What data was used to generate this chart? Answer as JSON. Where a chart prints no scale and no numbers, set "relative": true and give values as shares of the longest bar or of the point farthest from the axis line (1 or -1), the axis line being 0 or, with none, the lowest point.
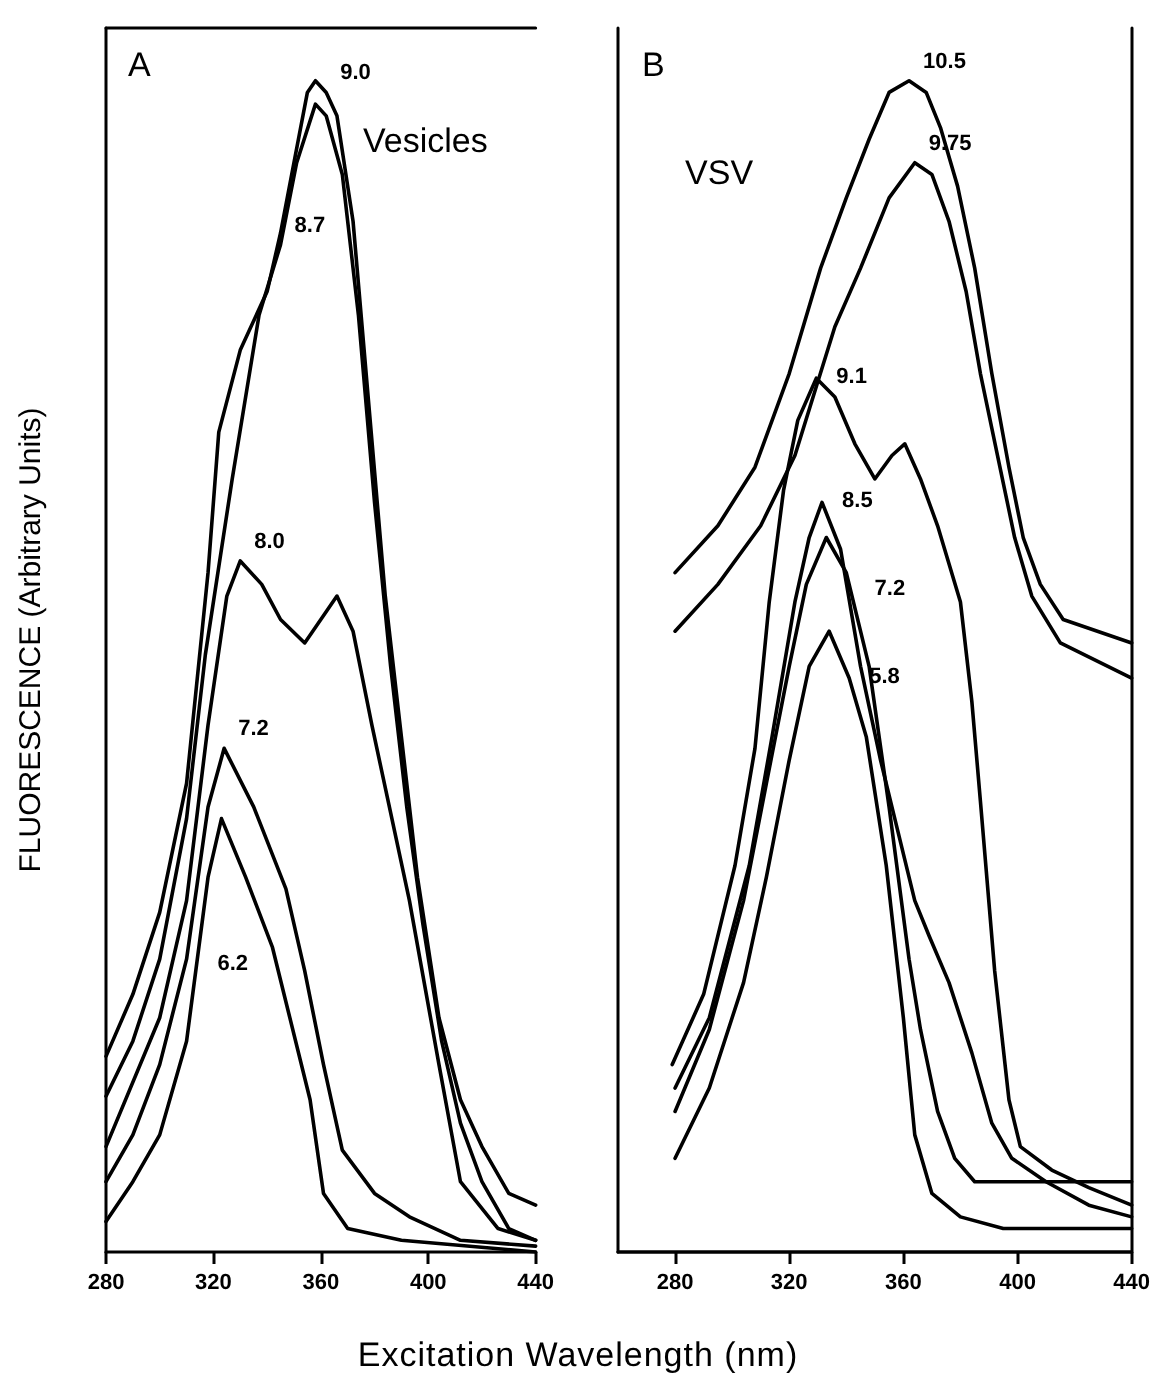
{
  "chart_data": [
    {
      "type": "line",
      "xlabel": "Excitation Wavelength (nm)",
      "ylabel": "FLUORESCENCE (Arbitrary Units)",
      "title": "Vesicles",
      "relative": true,
      "xlim": [
        280,
        440
      ],
      "xticks": [
        280,
        320,
        360,
        400,
        440
      ],
      "tick_labels": "x",
      "grid": false,
      "marker": "none",
      "line_style": "solid",
      "annotations": [
        "A",
        {
          "text": "9.0",
          "x": 362,
          "y": 0.99
        },
        {
          "text": "8.7",
          "x": 345,
          "y": 0.86
        },
        {
          "text": "8.0",
          "x": 330,
          "y": 0.59
        },
        {
          "text": "7.2",
          "x": 324,
          "y": 0.43
        },
        {
          "text": "6.2",
          "x": 342,
          "y": 0.26
        }
      ],
      "series": [
        {
          "color": "#000000",
          "x": [
            280,
            290,
            300,
            310,
            318,
            322,
            330,
            340,
            345,
            350,
            355,
            358,
            362,
            366,
            372,
            378,
            384,
            390,
            396,
            404,
            412,
            420,
            430,
            440
          ],
          "values": [
            0.167,
            0.22,
            0.29,
            0.4,
            0.58,
            0.7,
            0.77,
            0.82,
            0.87,
            0.93,
            0.99,
            1.0,
            0.99,
            0.97,
            0.88,
            0.72,
            0.56,
            0.44,
            0.32,
            0.2,
            0.13,
            0.09,
            0.05,
            0.04
          ]
        },
        {
          "color": "#000000",
          "x": [
            280,
            290,
            300,
            310,
            317,
            327,
            337,
            345,
            351,
            358,
            362,
            368,
            374,
            380,
            386,
            392,
            398,
            405,
            412,
            420,
            430,
            440
          ],
          "values": [
            0.133,
            0.18,
            0.25,
            0.37,
            0.51,
            0.66,
            0.8,
            0.86,
            0.93,
            0.98,
            0.97,
            0.92,
            0.8,
            0.64,
            0.5,
            0.38,
            0.28,
            0.18,
            0.11,
            0.06,
            0.02,
            0.01
          ]
        },
        {
          "color": "#000000",
          "x": [
            280,
            300,
            310,
            318,
            325,
            330,
            338,
            345,
            354,
            360,
            366,
            372,
            379,
            393,
            404,
            412,
            426,
            440
          ],
          "values": [
            0.09,
            0.2,
            0.3,
            0.45,
            0.56,
            0.59,
            0.57,
            0.54,
            0.52,
            0.54,
            0.56,
            0.53,
            0.45,
            0.3,
            0.16,
            0.06,
            0.02,
            0.01
          ]
        },
        {
          "color": "#000000",
          "x": [
            280,
            290,
            300,
            310,
            318,
            324,
            335,
            347,
            354,
            361,
            368,
            380,
            393,
            412,
            440
          ],
          "values": [
            0.06,
            0.1,
            0.16,
            0.25,
            0.38,
            0.43,
            0.38,
            0.31,
            0.24,
            0.16,
            0.087,
            0.05,
            0.03,
            0.01,
            0.005
          ]
        },
        {
          "color": "#000000",
          "x": [
            280,
            290,
            300,
            310,
            318,
            323,
            332,
            342,
            356,
            361,
            370,
            390,
            440
          ],
          "values": [
            0.026,
            0.06,
            0.1,
            0.18,
            0.32,
            0.37,
            0.32,
            0.26,
            0.13,
            0.05,
            0.02,
            0.01,
            0.0
          ]
        }
      ]
    },
    {
      "type": "line",
      "title": "VSV",
      "relative": true,
      "xlim": [
        260,
        440
      ],
      "xticks": [
        280,
        320,
        360,
        400,
        440
      ],
      "tick_labels": "x",
      "grid": false,
      "marker": "none",
      "line_style": "solid",
      "annotations": [
        "B",
        {
          "text": "10.5",
          "x": 362,
          "y": 1.0
        },
        {
          "text": "9.75",
          "x": 364,
          "y": 0.93
        },
        {
          "text": "9.1",
          "x": 329.5,
          "y": 0.746
        },
        {
          "text": "8.5",
          "x": 331.5,
          "y": 0.64
        },
        {
          "text": "7.2",
          "x": 345,
          "y": 0.55
        },
        {
          "text": "5.8",
          "x": 341,
          "y": 0.49
        }
      ],
      "series": [
        {
          "color": "#000000",
          "x": [
            280,
            295,
            308,
            320,
            331,
            340,
            348,
            355,
            362,
            368,
            373,
            379,
            385,
            391,
            397,
            402,
            408,
            416,
            440
          ],
          "values": [
            0.58,
            0.62,
            0.67,
            0.75,
            0.84,
            0.9,
            0.95,
            0.99,
            1.0,
            0.99,
            0.96,
            0.91,
            0.84,
            0.75,
            0.67,
            0.61,
            0.57,
            0.54,
            0.52
          ]
        },
        {
          "color": "#000000",
          "x": [
            280,
            295,
            310,
            322,
            336,
            345,
            355,
            364,
            370,
            376,
            382,
            387,
            393,
            399,
            405,
            415,
            440
          ],
          "values": [
            0.53,
            0.57,
            0.62,
            0.68,
            0.79,
            0.84,
            0.9,
            0.93,
            0.92,
            0.88,
            0.82,
            0.75,
            0.68,
            0.61,
            0.56,
            0.52,
            0.49
          ]
        },
        {
          "color": "#000000",
          "x": [
            279,
            290,
            301,
            308,
            313,
            318,
            323,
            329.5,
            336,
            343,
            350,
            356,
            360.5,
            366,
            372,
            380,
            384,
            387,
            392,
            397,
            401,
            412,
            425,
            440
          ],
          "values": [
            0.16,
            0.22,
            0.33,
            0.43,
            0.555,
            0.65,
            0.71,
            0.746,
            0.73,
            0.69,
            0.66,
            0.68,
            0.69,
            0.66,
            0.62,
            0.555,
            0.47,
            0.385,
            0.24,
            0.13,
            0.09,
            0.07,
            0.055,
            0.04
          ]
        },
        {
          "color": "#000000",
          "x": [
            280,
            292,
            306,
            314,
            322,
            327,
            331.5,
            338,
            345,
            352,
            358,
            364,
            369,
            376,
            384,
            391,
            398,
            410,
            425,
            440
          ],
          "values": [
            0.14,
            0.2,
            0.33,
            0.44,
            0.555,
            0.61,
            0.64,
            0.6,
            0.5,
            0.42,
            0.36,
            0.3,
            0.27,
            0.23,
            0.17,
            0.11,
            0.08,
            0.06,
            0.04,
            0.03
          ]
        },
        {
          "color": "#000000",
          "x": [
            280,
            292,
            304,
            312,
            320,
            326,
            333,
            340,
            348,
            355,
            362,
            366,
            372,
            378,
            385,
            392,
            410,
            425,
            440
          ],
          "values": [
            0.12,
            0.19,
            0.3,
            0.4,
            0.5,
            0.57,
            0.61,
            0.58,
            0.5,
            0.38,
            0.25,
            0.19,
            0.12,
            0.08,
            0.06,
            0.06,
            0.06,
            0.06,
            0.06
          ]
        },
        {
          "color": "#000000",
          "x": [
            280,
            292,
            304,
            312,
            320,
            327,
            334,
            341,
            347,
            354,
            360,
            364,
            370,
            380,
            395,
            420,
            440
          ],
          "values": [
            0.08,
            0.14,
            0.23,
            0.32,
            0.42,
            0.5,
            0.53,
            0.49,
            0.44,
            0.33,
            0.2,
            0.1,
            0.05,
            0.03,
            0.02,
            0.02,
            0.02
          ]
        }
      ]
    }
  ]
}
